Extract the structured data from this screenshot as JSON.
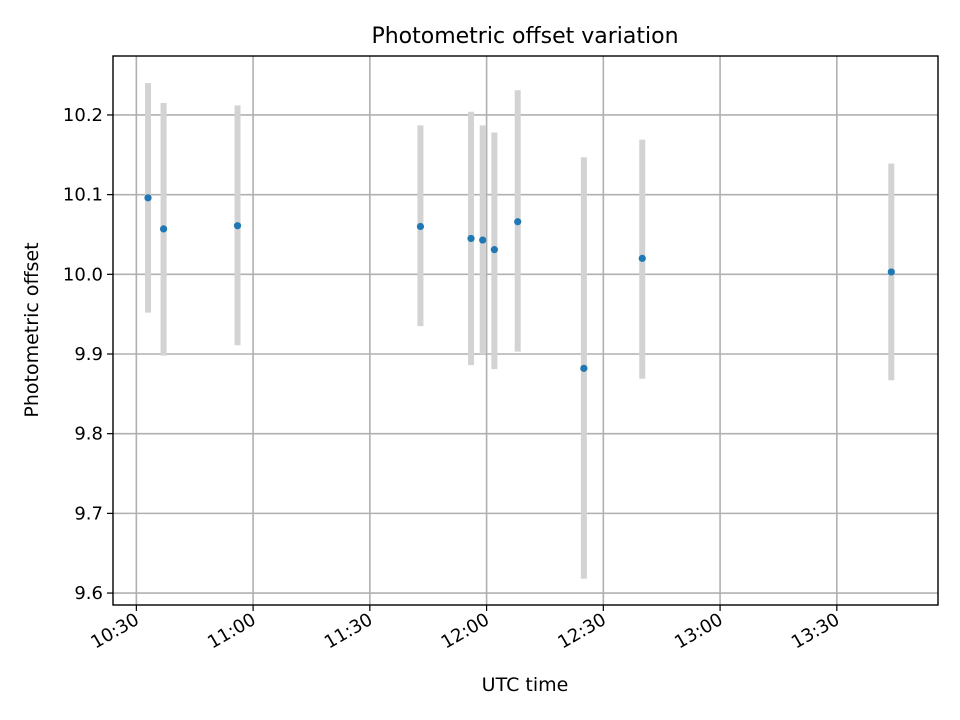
{
  "chart_data": {
    "type": "scatter",
    "title": "Photometric offset variation",
    "xlabel": "UTC time",
    "ylabel": "Photometric offset",
    "xlim": [
      "10:24",
      "13:56"
    ],
    "ylim": [
      9.585,
      10.274
    ],
    "x_ticks": [
      "10:30",
      "11:00",
      "11:30",
      "12:00",
      "12:30",
      "13:00",
      "13:30"
    ],
    "y_ticks": [
      9.6,
      9.7,
      9.8,
      9.9,
      10.0,
      10.1,
      10.2
    ],
    "y_tick_labels": [
      "9.6",
      "9.7",
      "9.8",
      "9.9",
      "10.0",
      "10.1",
      "10.2"
    ],
    "grid": true,
    "point_color": "#1f77b4",
    "errorbar_color": "#d3d3d3",
    "points": [
      {
        "x": "10:33",
        "y": 10.096,
        "err_low": 9.952,
        "err_high": 10.24
      },
      {
        "x": "10:37",
        "y": 10.057,
        "err_low": 9.898,
        "err_high": 10.215
      },
      {
        "x": "10:56",
        "y": 10.061,
        "err_low": 9.911,
        "err_high": 10.212
      },
      {
        "x": "11:43",
        "y": 10.06,
        "err_low": 9.935,
        "err_high": 10.187
      },
      {
        "x": "11:56",
        "y": 10.045,
        "err_low": 9.886,
        "err_high": 10.204
      },
      {
        "x": "11:59",
        "y": 10.043,
        "err_low": 9.9,
        "err_high": 10.187
      },
      {
        "x": "12:02",
        "y": 10.031,
        "err_low": 9.881,
        "err_high": 10.178
      },
      {
        "x": "12:08",
        "y": 10.066,
        "err_low": 9.903,
        "err_high": 10.231
      },
      {
        "x": "12:25",
        "y": 9.882,
        "err_low": 9.618,
        "err_high": 10.147
      },
      {
        "x": "12:40",
        "y": 10.02,
        "err_low": 9.869,
        "err_high": 10.169
      },
      {
        "x": "13:44",
        "y": 10.003,
        "err_low": 9.867,
        "err_high": 10.139
      }
    ]
  }
}
